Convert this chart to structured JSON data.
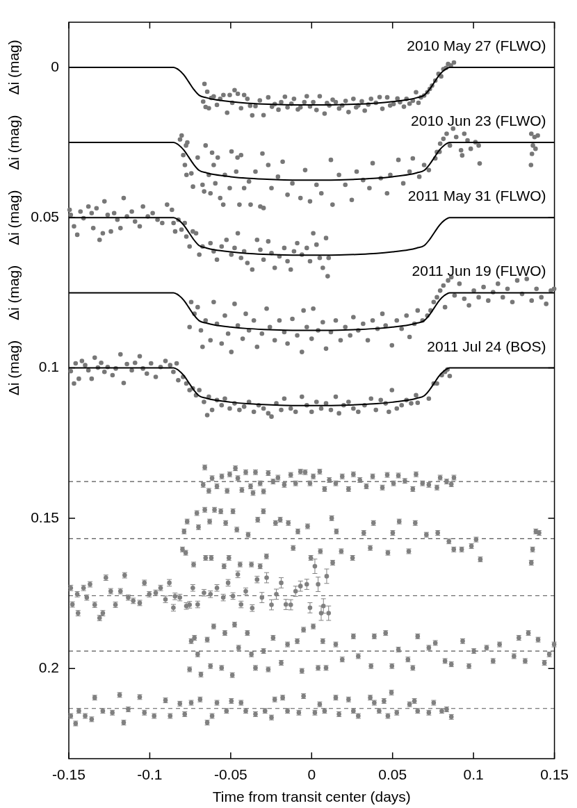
{
  "chart_data": {
    "type": "scatter",
    "xlabel": "Time from transit center (days)",
    "xlim": [
      -0.15,
      0.15
    ],
    "xticks": [
      -0.15,
      -0.1,
      -0.05,
      0,
      0.05,
      0.1,
      0.15
    ],
    "ylim": [
      0.23,
      -0.015
    ],
    "yticks": [
      0,
      0.05,
      0.1,
      0.15,
      0.2
    ],
    "marker": "circle",
    "line_style": "solid",
    "annotations": [
      "Δi (mag)",
      "Δi (mag)",
      "Δi (mag)",
      "Δi (mag)",
      "Δi (mag)"
    ],
    "ref_lines": [
      {
        "axis": "y",
        "value": 0.1378,
        "line_style": "dashed",
        "color": "#555555"
      },
      {
        "axis": "y",
        "value": 0.1568,
        "line_style": "dashed",
        "color": "#555555"
      },
      {
        "axis": "y",
        "value": 0.1758,
        "line_style": "dashed",
        "color": "#555555"
      },
      {
        "axis": "y",
        "value": 0.1942,
        "line_style": "dashed",
        "color": "#555555"
      },
      {
        "axis": "y",
        "value": 0.2133,
        "line_style": "dashed",
        "color": "#555555"
      }
    ],
    "series": [
      {
        "color": "#777777",
        "x": [
          -0.067,
          -0.0662,
          -0.0655,
          -0.0645,
          -0.0635,
          -0.062,
          -0.0605,
          -0.0585,
          -0.0565,
          -0.0545,
          -0.0522,
          -0.0506,
          -0.049,
          -0.0476,
          -0.0456,
          -0.0436,
          -0.0417,
          -0.0397,
          -0.038,
          -0.0367,
          -0.0347,
          -0.032,
          -0.0297,
          -0.0268,
          -0.0245,
          -0.0228,
          -0.0205,
          -0.0188,
          -0.0165,
          -0.0149,
          -0.0125,
          -0.0109,
          -0.0085,
          -0.0069,
          -0.0045,
          -0.003,
          -0.001,
          0.001,
          0.003,
          0.005,
          0.008,
          0.0095,
          0.0109,
          0.013,
          0.0149,
          0.017,
          0.0189,
          0.021,
          0.0228,
          0.0258,
          0.0275,
          0.0288,
          0.031,
          0.0328,
          0.035,
          0.0367,
          0.0397,
          0.042,
          0.0437,
          0.0467,
          0.0485,
          0.0506,
          0.053,
          0.0546,
          0.057,
          0.0586,
          0.0605,
          0.0625,
          0.0645,
          0.066,
          0.0675,
          0.0695,
          0.0715,
          0.073,
          0.0744,
          0.0764,
          0.0784,
          0.08,
          0.0814,
          0.083,
          0.0843,
          0.086,
          0.0879
        ],
        "values": [
          0.0114,
          0.0055,
          0.0132,
          0.0081,
          0.0136,
          0.0102,
          0.0097,
          0.0125,
          0.0105,
          0.0092,
          0.0151,
          0.0092,
          0.0118,
          0.0076,
          0.0088,
          0.0136,
          0.0092,
          0.0105,
          0.0128,
          0.016,
          0.0129,
          0.011,
          0.0159,
          0.01,
          0.0131,
          0.0122,
          0.0141,
          0.0116,
          0.0098,
          0.0133,
          0.0121,
          0.0105,
          0.014,
          0.0133,
          0.0116,
          0.0096,
          0.013,
          0.0116,
          0.0142,
          0.0096,
          0.0154,
          0.0119,
          0.0127,
          0.0108,
          0.0116,
          0.0137,
          0.0127,
          0.0112,
          0.0149,
          0.0105,
          0.0133,
          0.0127,
          0.0113,
          0.0144,
          0.0124,
          0.0105,
          0.0118,
          0.0099,
          0.0138,
          0.01,
          0.0127,
          0.0122,
          0.0104,
          0.0116,
          0.0131,
          0.0105,
          0.0121,
          0.0111,
          0.0083,
          0.0118,
          0.01,
          0.0094,
          0.0083,
          0.0072,
          0.0061,
          0.0044,
          0.0022,
          0.003,
          0.0006,
          0.0002,
          -0.0011,
          -0.0006,
          -0.0016
        ]
      },
      {
        "type": "line",
        "name": "2010 May 27 (FLWO)",
        "color": "#000000",
        "marker": "none",
        "x": [
          -0.15,
          -0.0853,
          -0.082,
          -0.079,
          -0.076,
          -0.073,
          -0.0695,
          -0.065,
          -0.06,
          -0.05,
          -0.04,
          -0.03,
          -0.02,
          -0.01,
          0,
          0.01,
          0.02,
          0.03,
          0.04,
          0.05,
          0.06,
          0.065,
          0.0695,
          0.073,
          0.076,
          0.079,
          0.082,
          0.0853,
          0.15
        ],
        "values": [
          0,
          0,
          0.0009,
          0.0025,
          0.0048,
          0.0072,
          0.0093,
          0.0101,
          0.0107,
          0.0114,
          0.0119,
          0.0122,
          0.0124,
          0.0125,
          0.0125,
          0.0125,
          0.0124,
          0.0122,
          0.0119,
          0.0114,
          0.0107,
          0.0101,
          0.0093,
          0.0072,
          0.0048,
          0.0025,
          0.0009,
          0,
          0
        ]
      },
      {
        "color": "#777777",
        "x": [
          -0.0813,
          -0.0803,
          -0.0793,
          -0.0783,
          -0.0776,
          -0.0773,
          -0.0768,
          -0.0743,
          -0.0733,
          -0.0704,
          -0.0674,
          -0.0664,
          -0.0655,
          -0.0635,
          -0.0625,
          -0.0615,
          -0.0605,
          -0.0595,
          -0.058,
          -0.0565,
          -0.0546,
          -0.0536,
          -0.0506,
          -0.0495,
          -0.0466,
          -0.0458,
          -0.0446,
          -0.0436,
          -0.0417,
          -0.0387,
          -0.0377,
          -0.0347,
          -0.0317,
          -0.0304,
          -0.0297,
          -0.0268,
          -0.0248,
          -0.0208,
          -0.0179,
          -0.0149,
          -0.0119,
          -0.0069,
          -0.004,
          -0.001,
          0.003,
          0.006,
          0.0119,
          0.0129,
          0.0169,
          0.0208,
          0.0248,
          0.0278,
          0.0318,
          0.0357,
          0.0377,
          0.0427,
          0.0466,
          0.0486,
          0.0536,
          0.0566,
          0.0605,
          0.0625,
          0.0665,
          0.0695,
          0.0724,
          0.0764,
          0.0774,
          0.079,
          0.0794,
          0.0814,
          0.0834,
          0.0854,
          0.0874,
          0.0893,
          0.0923,
          0.093,
          0.0943,
          0.0963,
          0.0983,
          0.1012,
          0.1032,
          0.1038,
          0.1355,
          0.1357,
          0.1361,
          0.1367,
          0.1377,
          0.1383,
          0.1397
        ],
        "values": [
          0.024,
          0.0227,
          0.0292,
          0.0325,
          0.026,
          0.0358,
          0.025,
          0.0353,
          0.0397,
          0.03,
          0.0391,
          0.0413,
          0.026,
          0.0358,
          0.0419,
          0.0284,
          0.0325,
          0.0386,
          0.03,
          0.0435,
          0.0457,
          0.0358,
          0.0402,
          0.028,
          0.0347,
          0.03,
          0.0457,
          0.0292,
          0.0402,
          0.038,
          0.0457,
          0.0347,
          0.0463,
          0.0287,
          0.0468,
          0.0325,
          0.0402,
          0.0364,
          0.0314,
          0.0424,
          0.0386,
          0.0435,
          0.0342,
          0.0446,
          0.0391,
          0.0419,
          0.0308,
          0.0457,
          0.0358,
          0.0391,
          0.0441,
          0.0347,
          0.0375,
          0.0402,
          0.0319,
          0.0369,
          0.0419,
          0.0358,
          0.0308,
          0.0386,
          0.0347,
          0.0303,
          0.0364,
          0.0325,
          0.0342,
          0.0303,
          0.0282,
          0.0281,
          0.0254,
          0.0238,
          0.0221,
          0.026,
          0.0204,
          0.0232,
          0.0276,
          0.0293,
          0.0221,
          0.0243,
          0.0271,
          0.0249,
          0.026,
          0.032,
          0.0325,
          0.0221,
          0.0288,
          0.026,
          0.0232,
          0.0271,
          0.0227
        ]
      },
      {
        "type": "line",
        "name": "2010 Jun 23 (FLWO)",
        "color": "#000000",
        "marker": "none",
        "x": [
          -0.15,
          -0.0853,
          -0.082,
          -0.079,
          -0.076,
          -0.073,
          -0.0695,
          -0.065,
          -0.06,
          -0.05,
          -0.04,
          -0.03,
          -0.02,
          -0.01,
          0,
          0.01,
          0.02,
          0.03,
          0.04,
          0.05,
          0.06,
          0.065,
          0.0695,
          0.073,
          0.076,
          0.079,
          0.082,
          0.0853,
          0.15
        ],
        "values": [
          0.025,
          0.025,
          0.0259,
          0.0275,
          0.0298,
          0.0322,
          0.0343,
          0.0351,
          0.0357,
          0.0364,
          0.0369,
          0.0372,
          0.0374,
          0.0375,
          0.0375,
          0.0375,
          0.0374,
          0.0372,
          0.0369,
          0.0364,
          0.0357,
          0.0351,
          0.0343,
          0.0322,
          0.0298,
          0.0275,
          0.0259,
          0.025,
          0.025
        ]
      },
      {
        "color": "#777777",
        "x": [
          -0.1495,
          -0.1488,
          -0.1468,
          -0.1448,
          -0.1428,
          -0.1409,
          -0.1379,
          -0.1359,
          -0.1349,
          -0.1329,
          -0.131,
          -0.129,
          -0.128,
          -0.126,
          -0.124,
          -0.122,
          -0.12,
          -0.1181,
          -0.1161,
          -0.1141,
          -0.1111,
          -0.1091,
          -0.1062,
          -0.1042,
          -0.1012,
          -0.0982,
          -0.0952,
          -0.0923,
          -0.0893,
          -0.0863,
          -0.0853,
          -0.0843,
          -0.0823,
          -0.0804,
          -0.0784,
          -0.0774,
          -0.0754,
          -0.0734,
          -0.0714,
          -0.0694,
          -0.0674,
          -0.0625,
          -0.0605,
          -0.0585,
          -0.0556,
          -0.0526,
          -0.0496,
          -0.0476,
          -0.0456,
          -0.0436,
          -0.0417,
          -0.0397,
          -0.0367,
          -0.0337,
          -0.0317,
          -0.0297,
          -0.0268,
          -0.0248,
          -0.0228,
          -0.0199,
          -0.0169,
          -0.0149,
          -0.0129,
          -0.0109,
          -0.0089,
          -0.006,
          -0.003,
          -0.001,
          0.001,
          0.003,
          0.005,
          0.0069,
          0.0089,
          0.0099,
          0.0105
        ],
        "values": [
          0.0474,
          0.0491,
          0.0529,
          0.0557,
          0.048,
          0.0502,
          0.0463,
          0.0485,
          0.0535,
          0.0469,
          0.0574,
          0.0552,
          0.0446,
          0.0491,
          0.0546,
          0.0485,
          0.0507,
          0.0535,
          0.0435,
          0.0496,
          0.048,
          0.0513,
          0.0529,
          0.0463,
          0.0496,
          0.0485,
          0.0507,
          0.0518,
          0.0457,
          0.0474,
          0.0518,
          0.0546,
          0.0507,
          0.054,
          0.0518,
          0.0563,
          0.0596,
          0.0546,
          0.0552,
          0.0623,
          0.0596,
          0.0585,
          0.0612,
          0.064,
          0.0596,
          0.0574,
          0.0623,
          0.0601,
          0.0552,
          0.0634,
          0.0612,
          0.0651,
          0.0673,
          0.0574,
          0.0607,
          0.064,
          0.0579,
          0.0618,
          0.0667,
          0.0629,
          0.0601,
          0.0645,
          0.0673,
          0.0612,
          0.0585,
          0.0623,
          0.0601,
          0.0645,
          0.0552,
          0.059,
          0.0634,
          0.0667,
          0.0568,
          0.0695,
          0.0634
        ]
      },
      {
        "type": "line",
        "name": "2011 May 31 (FLWO)",
        "color": "#000000",
        "marker": "none",
        "x": [
          -0.15,
          -0.0853,
          -0.082,
          -0.079,
          -0.076,
          -0.073,
          -0.0695,
          -0.065,
          -0.06,
          -0.05,
          -0.04,
          -0.03,
          -0.02,
          -0.01,
          0,
          0.01,
          0.02,
          0.03,
          0.04,
          0.05,
          0.06,
          0.065,
          0.0695,
          0.073,
          0.076,
          0.079,
          0.082,
          0.0853,
          0.15
        ],
        "values": [
          0.05,
          0.05,
          0.0509,
          0.0525,
          0.0548,
          0.0572,
          0.0593,
          0.0601,
          0.0607,
          0.0614,
          0.0619,
          0.0622,
          0.0624,
          0.0625,
          0.0625,
          0.0625,
          0.0624,
          0.0622,
          0.0619,
          0.0614,
          0.0607,
          0.0601,
          0.0593,
          0.0572,
          0.0548,
          0.0525,
          0.0509,
          0.05,
          0.05
        ]
      },
      {
        "color": "#777777",
        "x": [
          -0.0754,
          -0.0744,
          -0.0724,
          -0.0704,
          -0.0684,
          -0.0674,
          -0.0655,
          -0.0625,
          -0.0605,
          -0.0585,
          -0.0556,
          -0.0536,
          -0.0516,
          -0.0496,
          -0.0476,
          -0.0456,
          -0.0426,
          -0.0407,
          -0.0387,
          -0.0357,
          -0.0337,
          -0.0307,
          -0.0278,
          -0.0258,
          -0.0228,
          -0.0199,
          -0.0169,
          -0.0149,
          -0.0119,
          -0.0089,
          -0.006,
          -0.005,
          -0.003,
          0.0,
          0.001,
          0.004,
          0.0069,
          0.0089,
          0.0119,
          0.0149,
          0.0179,
          0.0208,
          0.0238,
          0.0258,
          0.0288,
          0.0318,
          0.0347,
          0.0377,
          0.0407,
          0.0437,
          0.0457,
          0.0496,
          0.0526,
          0.0556,
          0.0586,
          0.0605,
          0.0635,
          0.0655,
          0.0685,
          0.0715,
          0.0735,
          0.0754,
          0.0774,
          0.0794,
          0.0814,
          0.0824,
          0.0843,
          0.0863,
          0.0883,
          0.0913,
          0.0943,
          0.0972,
          0.1002,
          0.1032,
          0.1062,
          0.1091,
          0.1121,
          0.1151,
          0.1181,
          0.121,
          0.124,
          0.127,
          0.13,
          0.1329,
          0.1359,
          0.1389,
          0.1419,
          0.1449,
          0.1478,
          0.1498
        ],
        "values": [
          0.0864,
          0.0781,
          0.082,
          0.0798,
          0.0875,
          0.093,
          0.0842,
          0.0908,
          0.0781,
          0.0853,
          0.0919,
          0.0826,
          0.0886,
          0.0947,
          0.0787,
          0.0859,
          0.0903,
          0.082,
          0.0875,
          0.0842,
          0.093,
          0.0886,
          0.0803,
          0.0864,
          0.0908,
          0.0842,
          0.0881,
          0.0919,
          0.0837,
          0.0892,
          0.0947,
          0.0809,
          0.0864,
          0.0903,
          0.0803,
          0.0875,
          0.0848,
          0.0936,
          0.0881,
          0.0842,
          0.0908,
          0.0864,
          0.0892,
          0.0831,
          0.0875,
          0.0853,
          0.0908,
          0.0842,
          0.087,
          0.082,
          0.0859,
          0.0925,
          0.0842,
          0.087,
          0.0826,
          0.0897,
          0.0853,
          0.0809,
          0.0842,
          0.0826,
          0.0809,
          0.0781,
          0.0765,
          0.0743,
          0.0726,
          0.0798,
          0.0709,
          0.0698,
          0.0759,
          0.072,
          0.077,
          0.0792,
          0.0743,
          0.0765,
          0.0731,
          0.0776,
          0.0748,
          0.072,
          0.0765,
          0.0737,
          0.0781,
          0.0709,
          0.0754,
          0.0704,
          0.0776,
          0.0737,
          0.0765,
          0.0787,
          0.0743,
          0.0737
        ]
      },
      {
        "type": "line",
        "name": "2011 Jun 19 (FLWO)",
        "color": "#000000",
        "marker": "none",
        "x": [
          -0.15,
          -0.0853,
          -0.082,
          -0.079,
          -0.076,
          -0.073,
          -0.0695,
          -0.065,
          -0.06,
          -0.05,
          -0.04,
          -0.03,
          -0.02,
          -0.01,
          0,
          0.01,
          0.02,
          0.03,
          0.04,
          0.05,
          0.06,
          0.065,
          0.0695,
          0.073,
          0.076,
          0.079,
          0.082,
          0.0853,
          0.15
        ],
        "values": [
          0.075,
          0.075,
          0.0759,
          0.0775,
          0.0798,
          0.0822,
          0.0843,
          0.0851,
          0.0857,
          0.0864,
          0.0869,
          0.0872,
          0.0874,
          0.0875,
          0.0875,
          0.0875,
          0.0874,
          0.0872,
          0.0869,
          0.0864,
          0.0857,
          0.0851,
          0.0843,
          0.0822,
          0.0798,
          0.0775,
          0.0759,
          0.075,
          0.075
        ]
      },
      {
        "color": "#777777",
        "x": [
          -0.1488,
          -0.1468,
          -0.1458,
          -0.1438,
          -0.1419,
          -0.1399,
          -0.1379,
          -0.1359,
          -0.134,
          -0.132,
          -0.13,
          -0.128,
          -0.126,
          -0.123,
          -0.121,
          -0.1181,
          -0.1161,
          -0.1141,
          -0.1111,
          -0.1091,
          -0.1062,
          -0.1042,
          -0.1018,
          -0.0992,
          -0.0963,
          -0.0933,
          -0.0903,
          -0.0874,
          -0.0854,
          -0.0834,
          -0.0824,
          -0.0794,
          -0.0774,
          -0.0754,
          -0.0734,
          -0.0714,
          -0.0694,
          -0.0665,
          -0.0645,
          -0.0635,
          -0.0615,
          -0.0585,
          -0.0556,
          -0.0536,
          -0.0506,
          -0.0476,
          -0.0446,
          -0.0417,
          -0.0387,
          -0.0357,
          -0.0327,
          -0.0297,
          -0.0268,
          -0.0248,
          -0.0218,
          -0.0188,
          -0.0169,
          -0.0129,
          -0.0099,
          -0.006,
          -0.003,
          0.0,
          0.003,
          0.0059,
          0.0089,
          0.0119,
          0.0149,
          0.0169,
          0.0198,
          0.0228,
          0.0258,
          0.0288,
          0.0327,
          0.0367,
          0.0397,
          0.0427,
          0.0457,
          0.0477,
          0.0496,
          0.0526,
          0.0556,
          0.0586,
          0.0615,
          0.0645,
          0.0655,
          0.0724,
          0.0754,
          0.0774,
          0.0804,
          0.0824,
          0.0839,
          0.0853
        ],
        "values": [
          0.1011,
          0.1052,
          0.0985,
          0.1036,
          0.0977,
          0.0991,
          0.1008,
          0.1036,
          0.0966,
          0.0999,
          0.0983,
          0.1013,
          0.0997,
          0.1024,
          0.1002,
          0.0955,
          0.105,
          0.0987,
          0.1008,
          0.0983,
          0.0961,
          0.1002,
          0.1019,
          0.0985,
          0.103,
          0.0997,
          0.0977,
          0.0991,
          0.1013,
          0.0985,
          0.1041,
          0.103,
          0.1052,
          0.1074,
          0.1068,
          0.1091,
          0.1074,
          0.1113,
          0.1157,
          0.1096,
          0.114,
          0.1107,
          0.1124,
          0.1102,
          0.1135,
          0.1118,
          0.114,
          0.1129,
          0.1113,
          0.1146,
          0.1124,
          0.1135,
          0.1151,
          0.1162,
          0.1118,
          0.114,
          0.1102,
          0.1135,
          0.1146,
          0.1096,
          0.1124,
          0.1146,
          0.1113,
          0.1135,
          0.1118,
          0.114,
          0.1096,
          0.1151,
          0.1124,
          0.1113,
          0.1135,
          0.1146,
          0.1124,
          0.1102,
          0.114,
          0.1107,
          0.1118,
          0.1146,
          0.1074,
          0.1135,
          0.1124,
          0.1107,
          0.1118,
          0.1091,
          0.1116,
          0.1102,
          0.1052,
          0.1052,
          0.1024,
          0.1013,
          0.1005,
          0.1027
        ]
      },
      {
        "type": "line",
        "name": "2011 Jul 24 (BOS)",
        "color": "#000000",
        "marker": "none",
        "x": [
          -0.15,
          -0.0853,
          -0.082,
          -0.079,
          -0.076,
          -0.073,
          -0.0695,
          -0.065,
          -0.06,
          -0.05,
          -0.04,
          -0.03,
          -0.02,
          -0.01,
          0,
          0.01,
          0.02,
          0.03,
          0.04,
          0.05,
          0.06,
          0.065,
          0.0695,
          0.073,
          0.076,
          0.079,
          0.082,
          0.0853,
          0.15
        ],
        "values": [
          0.1,
          0.1,
          0.1009,
          0.1025,
          0.1048,
          0.1072,
          0.1093,
          0.1101,
          0.1107,
          0.1114,
          0.1119,
          0.1122,
          0.1124,
          0.1125,
          0.1125,
          0.1125,
          0.1124,
          0.1122,
          0.1119,
          0.1114,
          0.1107,
          0.1101,
          0.1093,
          0.1072,
          0.1048,
          0.1025,
          0.1009,
          0.1,
          0.1
        ]
      },
      {
        "color": "#808080",
        "x": [
          -0.067,
          -0.066,
          -0.0635,
          -0.0615,
          -0.0585,
          -0.0555,
          -0.0522,
          -0.0506,
          -0.0471,
          -0.0456,
          -0.0431,
          -0.0407,
          -0.0377,
          -0.0362,
          -0.0347,
          -0.0318,
          -0.0297,
          -0.0268,
          -0.0238,
          -0.0208,
          -0.0169,
          -0.0129,
          -0.0099,
          -0.0069,
          -0.004,
          -0.001,
          0.001,
          0.005,
          0.008,
          0.0109,
          0.0149,
          0.0189,
          0.0228,
          0.0258,
          0.0298,
          0.0338,
          0.0377,
          0.0437,
          0.0467,
          0.0506,
          0.0536,
          0.0576,
          0.0625,
          0.0645,
          0.0685,
          0.0724,
          0.0774,
          0.0794,
          0.0834,
          0.0863,
          0.0879
        ],
        "values": [
          0.1389,
          0.1331,
          0.1409,
          0.1367,
          0.1394,
          0.1361,
          0.1409,
          0.1354,
          0.1334,
          0.1367,
          0.1406,
          0.1347,
          0.1394,
          0.1416,
          0.1347,
          0.1384,
          0.1411,
          0.135,
          0.1378,
          0.1365,
          0.1389,
          0.1356,
          0.1384,
          0.1345,
          0.1347,
          0.1384,
          0.1361,
          0.1345,
          0.1403,
          0.1373,
          0.1384,
          0.1361,
          0.1403,
          0.1354,
          0.1373,
          0.1394,
          0.1361,
          0.1398,
          0.1356,
          0.1384,
          0.1358,
          0.1376,
          0.1403,
          0.1354,
          0.1384,
          0.1389,
          0.1398,
          0.1365,
          0.1378,
          0.1387,
          0.1365
        ],
        "errors": [
          0.0008,
          0.0008,
          0.0008,
          0.0008,
          0.0008,
          0.0008,
          0.0008,
          0.0008,
          0.0008,
          0.0008,
          0.0008,
          0.0008,
          0.0008,
          0.0008,
          0.0008,
          0.0008,
          0.0008,
          0.0008,
          0.0008,
          0.0008,
          0.0008,
          0.0008,
          0.0008,
          0.0008,
          0.0008,
          0.0008,
          0.0008,
          0.0008,
          0.0008,
          0.0008,
          0.0008,
          0.0008,
          0.0008,
          0.0008,
          0.0008,
          0.0008,
          0.0008,
          0.0008,
          0.0008,
          0.0008,
          0.0008,
          0.0008,
          0.0008,
          0.0008,
          0.0008,
          0.0008,
          0.0008,
          0.0008,
          0.0008,
          0.0008,
          0.0008
        ]
      },
      {
        "color": "#808080",
        "x": [
          -0.0798,
          -0.0788,
          -0.0778,
          -0.0769,
          -0.0729,
          -0.0709,
          -0.0699,
          -0.066,
          -0.0655,
          -0.063,
          -0.062,
          -0.06,
          -0.0561,
          -0.0541,
          -0.0531,
          -0.0511,
          -0.0486,
          -0.0462,
          -0.0442,
          -0.0392,
          -0.0372,
          -0.0333,
          -0.0318,
          -0.0298,
          -0.0279,
          -0.0223,
          -0.0194,
          -0.0144,
          -0.0114,
          -0.0085,
          -0.0025,
          -0.0005,
          0.0054,
          0.0124,
          0.013,
          0.0153,
          0.0183,
          0.0253,
          0.0322,
          0.0362,
          0.0382,
          0.0471,
          0.0501,
          0.0541,
          0.06,
          0.064,
          0.0709,
          0.0779,
          0.0848,
          0.0878,
          0.0927,
          0.0987,
          0.1016,
          0.1042,
          0.1357,
          0.1365,
          0.1385,
          0.1405
        ],
        "values": [
          0.1604,
          0.1544,
          0.1615,
          0.1511,
          0.1654,
          0.1483,
          0.153,
          0.1472,
          0.1632,
          0.1511,
          0.1632,
          0.1472,
          0.1477,
          0.166,
          0.1516,
          0.1632,
          0.1477,
          0.1538,
          0.1654,
          0.1555,
          0.1654,
          0.1505,
          0.166,
          0.1477,
          0.1627,
          0.1516,
          0.1505,
          0.1516,
          0.1599,
          0.1544,
          0.1527,
          0.1632,
          0.161,
          0.15,
          0.1648,
          0.1544,
          0.161,
          0.1632,
          0.1549,
          0.1599,
          0.1516,
          0.1615,
          0.1549,
          0.1511,
          0.161,
          0.1516,
          0.1555,
          0.1549,
          0.1577,
          0.1604,
          0.1604,
          0.1593,
          0.1571,
          0.1637,
          0.1648,
          0.1604,
          0.1544,
          0.1549
        ],
        "errors": [
          0.0008,
          0.0008,
          0.0008,
          0.0008,
          0.0008,
          0.0008,
          0.0008,
          0.0008,
          0.0008,
          0.0008,
          0.0008,
          0.0008,
          0.0008,
          0.0008,
          0.0008,
          0.0008,
          0.0008,
          0.0008,
          0.0008,
          0.0008,
          0.0008,
          0.0008,
          0.0008,
          0.0008,
          0.0008,
          0.0008,
          0.0008,
          0.0008,
          0.0008,
          0.0008,
          0.0008,
          0.0008,
          0.0008,
          0.0008,
          0.0008,
          0.0008,
          0.0008,
          0.0008,
          0.0008,
          0.0008,
          0.0008,
          0.0008,
          0.0008,
          0.0008,
          0.0008,
          0.0008,
          0.0008,
          0.0008,
          0.0008,
          0.0008,
          0.0008,
          0.0008,
          0.0008,
          0.0008,
          0.0008,
          0.0008,
          0.0008,
          0.0008
        ]
      },
      {
        "color": "#808080",
        "x": [
          -0.1488,
          -0.1478,
          -0.1448,
          -0.1443,
          -0.1409,
          -0.1389,
          -0.1369,
          -0.134,
          -0.131,
          -0.129,
          -0.1271,
          -0.1241,
          -0.1212,
          -0.1181,
          -0.1155,
          -0.1133,
          -0.1102,
          -0.1062,
          -0.1033,
          -0.1003,
          -0.0963,
          -0.0933,
          -0.0903,
          -0.0879,
          -0.0854,
          -0.0844,
          -0.0814,
          -0.0774,
          -0.0754,
          -0.0734,
          -0.0704,
          -0.0665,
          -0.0625,
          -0.0585,
          -0.0546,
          -0.0516,
          -0.0486,
          -0.0456,
          -0.0436,
          -0.0407,
          -0.0367,
          -0.0337,
          -0.0307,
          -0.0278,
          -0.0248,
          -0.0218,
          -0.0188,
          -0.0159,
          -0.0129,
          -0.0099,
          -0.0069,
          -0.003,
          -0.001,
          0.002,
          0.004,
          0.0059,
          0.0073,
          0.0093,
          0.0105
        ],
        "values": [
          0.1732,
          0.1787,
          0.1753,
          0.1816,
          0.1732,
          0.1764,
          0.172,
          0.1788,
          0.1832,
          0.1816,
          0.1698,
          0.1743,
          0.1788,
          0.1743,
          0.169,
          0.1764,
          0.1775,
          0.1782,
          0.1715,
          0.1753,
          0.1748,
          0.1732,
          0.177,
          0.1715,
          0.1798,
          0.176,
          0.1764,
          0.1792,
          0.1788,
          0.1732,
          0.1787,
          0.1748,
          0.1753,
          0.1732,
          0.1764,
          0.1715,
          0.1759,
          0.1687,
          0.1787,
          0.1743,
          0.1799,
          0.1704,
          0.1764,
          0.1698,
          0.1788,
          0.1753,
          0.1715,
          0.1787,
          0.1788,
          0.1743,
          0.1726,
          0.172,
          0.1798,
          0.166,
          0.172,
          0.1816,
          0.1792,
          0.1693,
          0.1816
        ],
        "errors": [
          0.0009,
          0.0009,
          0.0009,
          0.0009,
          0.0009,
          0.0009,
          0.0009,
          0.0009,
          0.0009,
          0.0009,
          0.0009,
          0.0009,
          0.0009,
          0.0009,
          0.0009,
          0.0009,
          0.0009,
          0.0009,
          0.0009,
          0.0009,
          0.0009,
          0.0009,
          0.0011,
          0.0011,
          0.0011,
          0.0011,
          0.0011,
          0.0011,
          0.0011,
          0.0011,
          0.0011,
          0.0011,
          0.0011,
          0.0011,
          0.0011,
          0.0011,
          0.0011,
          0.0011,
          0.0011,
          0.0011,
          0.0011,
          0.0011,
          0.0017,
          0.0017,
          0.0017,
          0.0017,
          0.0017,
          0.0017,
          0.0017,
          0.0017,
          0.0017,
          0.0017,
          0.0017,
          0.0024,
          0.0024,
          0.0024,
          0.0024,
          0.0024,
          0.0024
        ]
      },
      {
        "color": "#808080",
        "x": [
          -0.0754,
          -0.0744,
          -0.0724,
          -0.0704,
          -0.0684,
          -0.0645,
          -0.0625,
          -0.0605,
          -0.0556,
          -0.0536,
          -0.049,
          -0.0476,
          -0.0451,
          -0.0397,
          -0.0372,
          -0.0347,
          -0.0297,
          -0.0268,
          -0.0238,
          -0.0188,
          -0.0149,
          -0.0089,
          -0.006,
          -0.005,
          0.001,
          0.004,
          0.0069,
          0.0089,
          0.0149,
          0.0189,
          0.0258,
          0.0288,
          0.0367,
          0.0387,
          0.0457,
          0.0496,
          0.0536,
          0.0595,
          0.0625,
          0.0655,
          0.0724,
          0.0764,
          0.0824,
          0.0863,
          0.0933,
          0.0972,
          0.1002,
          0.1081,
          0.1121,
          0.1161,
          0.125,
          0.128,
          0.1319,
          0.1339,
          0.1399,
          0.1438,
          0.1468,
          0.1498
        ],
        "values": [
          0.2003,
          0.1909,
          0.1898,
          0.1953,
          0.202,
          0.1904,
          0.1992,
          0.186,
          0.1998,
          0.1882,
          0.2022,
          0.1854,
          0.1931,
          0.1882,
          0.1953,
          0.1998,
          0.1942,
          0.2003,
          0.1898,
          0.1981,
          0.192,
          0.1909,
          0.2008,
          0.1871,
          0.186,
          0.1998,
          0.1909,
          0.1998,
          0.192,
          0.197,
          0.1893,
          0.1959,
          0.1992,
          0.1893,
          0.1882,
          0.1992,
          0.1937,
          0.197,
          0.1998,
          0.1893,
          0.1931,
          0.1915,
          0.1975,
          0.1986,
          0.1909,
          0.1992,
          0.1942,
          0.1931,
          0.1975,
          0.192,
          0.1959,
          0.1898,
          0.1975,
          0.1882,
          0.1904,
          0.1981,
          0.1953,
          0.192
        ],
        "errors": [
          0.0008,
          0.0008,
          0.0008,
          0.0008,
          0.0008,
          0.0008,
          0.0008,
          0.0008,
          0.0008,
          0.0008,
          0.0008,
          0.0008,
          0.0008,
          0.0008,
          0.0008,
          0.0008,
          0.0008,
          0.0008,
          0.0008,
          0.0008,
          0.0008,
          0.0008,
          0.0008,
          0.0008,
          0.0008,
          0.0008,
          0.0008,
          0.0008,
          0.0008,
          0.0008,
          0.0008,
          0.0008,
          0.0008,
          0.0008,
          0.0008,
          0.0008,
          0.0008,
          0.0008,
          0.0008,
          0.0008,
          0.0008,
          0.0008,
          0.0008,
          0.0008,
          0.0008,
          0.0008,
          0.0008,
          0.0008,
          0.0008,
          0.0008,
          0.0008,
          0.0008,
          0.0008,
          0.0008,
          0.0008,
          0.0008,
          0.0008,
          0.0008
        ]
      },
      {
        "color": "#808080",
        "x": [
          -0.1488,
          -0.1458,
          -0.1438,
          -0.1399,
          -0.1359,
          -0.134,
          -0.129,
          -0.1231,
          -0.1186,
          -0.1161,
          -0.1133,
          -0.1062,
          -0.1033,
          -0.0973,
          -0.0903,
          -0.0874,
          -0.0814,
          -0.0784,
          -0.0744,
          -0.0689,
          -0.0645,
          -0.0615,
          -0.0585,
          -0.0526,
          -0.0496,
          -0.0436,
          -0.0407,
          -0.0347,
          -0.0288,
          -0.0248,
          -0.0228,
          -0.0179,
          -0.0149,
          -0.0079,
          -0.005,
          0.002,
          0.005,
          0.008,
          0.0149,
          0.0169,
          0.0228,
          0.0258,
          0.0288,
          0.0362,
          0.0387,
          0.0417,
          0.0447,
          0.0471,
          0.0493,
          0.0526,
          0.0605,
          0.0635,
          0.0655,
          0.0724,
          0.0754,
          0.0804,
          0.0834,
          0.0863
        ],
        "values": [
          0.2158,
          0.2183,
          0.2141,
          0.2158,
          0.2169,
          0.2097,
          0.2141,
          0.2147,
          0.2088,
          0.218,
          0.2136,
          0.2095,
          0.2147,
          0.2158,
          0.2106,
          0.2158,
          0.2117,
          0.2152,
          0.2114,
          0.2103,
          0.218,
          0.2158,
          0.2114,
          0.2141,
          0.2108,
          0.2114,
          0.2141,
          0.2152,
          0.2141,
          0.2163,
          0.2103,
          0.2097,
          0.2141,
          0.2147,
          0.2092,
          0.2147,
          0.2119,
          0.2141,
          0.2097,
          0.2152,
          0.2103,
          0.2141,
          0.2158,
          0.2097,
          0.2114,
          0.2141,
          0.2108,
          0.2158,
          0.208,
          0.2147,
          0.2119,
          0.2108,
          0.2141,
          0.2147,
          0.2114,
          0.2141,
          0.2136,
          0.2161
        ],
        "errors": [
          0.0008,
          0.0008,
          0.0008,
          0.0008,
          0.0008,
          0.0008,
          0.0008,
          0.0008,
          0.0008,
          0.0008,
          0.0008,
          0.0008,
          0.0008,
          0.0008,
          0.0008,
          0.0008,
          0.0008,
          0.0008,
          0.0008,
          0.0008,
          0.0008,
          0.0008,
          0.0008,
          0.0008,
          0.0008,
          0.0008,
          0.0008,
          0.0008,
          0.0008,
          0.0008,
          0.0008,
          0.0008,
          0.0008,
          0.0008,
          0.0008,
          0.0008,
          0.0008,
          0.0008,
          0.0008,
          0.0008,
          0.0008,
          0.0008,
          0.0008,
          0.0008,
          0.0008,
          0.0008,
          0.0008,
          0.0008,
          0.0008,
          0.0008,
          0.0008,
          0.0008,
          0.0008,
          0.0008,
          0.0008,
          0.0008,
          0.0008,
          0.0008
        ]
      }
    ]
  }
}
